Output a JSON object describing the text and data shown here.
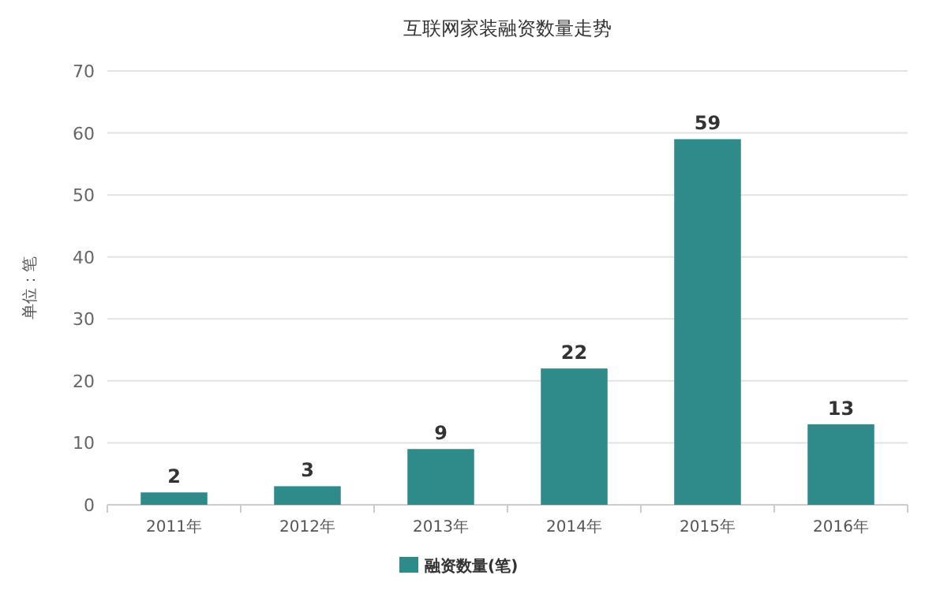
{
  "chart_data": {
    "type": "bar",
    "title": "互联网家装融资数量走势",
    "ylabel": "单位：笔",
    "categories": [
      "2011年",
      "2012年",
      "2013年",
      "2014年",
      "2015年",
      "2016年"
    ],
    "series": [
      {
        "name": "融资数量(笔)",
        "color": "#2e8b8a",
        "values": [
          2,
          3,
          9,
          22,
          59,
          13
        ]
      }
    ],
    "ylim": [
      0,
      70
    ],
    "yticks": [
      0,
      10,
      20,
      30,
      40,
      50,
      60,
      70
    ],
    "grid": "y",
    "legend": "bottom",
    "data_labels": true
  }
}
